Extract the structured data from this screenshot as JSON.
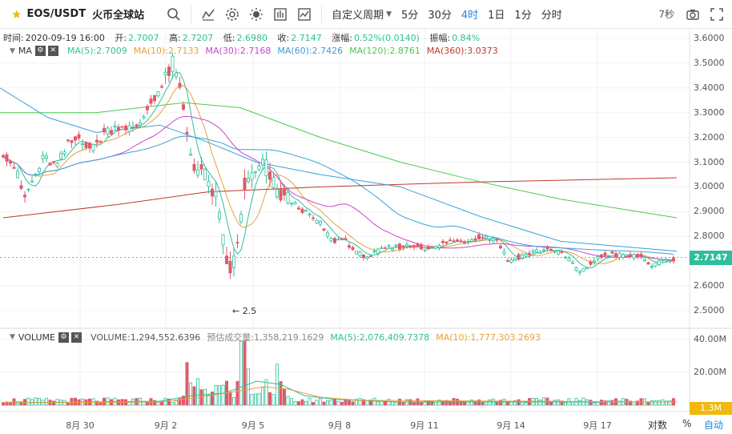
{
  "toolbar": {
    "pair": "EOS/USDT",
    "exchange": "火币全球站",
    "custom_period": "自定义周期",
    "periods": [
      "5分",
      "30分",
      "4时",
      "1日",
      "1分",
      "分时"
    ],
    "active_period": "4时",
    "seconds": "7秒",
    "icons": [
      "search-icon",
      "line-tool-icon",
      "gear-icon",
      "theme-icon",
      "compare-icon",
      "indicator-icon",
      "camera-icon",
      "fullscreen-icon"
    ]
  },
  "info": {
    "time_label": "时间:",
    "time": "2020-09-19 16:00",
    "open_label": "开:",
    "open": "2.7007",
    "high_label": "高:",
    "high": "2.7207",
    "low_label": "低:",
    "low": "2.6980",
    "close_label": "收:",
    "close": "2.7147",
    "change_label": "涨幅:",
    "change": "0.52%(0.0140)",
    "amplitude_label": "振幅:",
    "amplitude": "0.84%"
  },
  "ma_legend": {
    "name": "MA",
    "items": [
      {
        "label": "MA(5):2.7009",
        "color": "#2fbf9a"
      },
      {
        "label": "MA(10):2.7133",
        "color": "#e6a23c"
      },
      {
        "label": "MA(30):2.7168",
        "color": "#cc44cc"
      },
      {
        "label": "MA(60):2.7426",
        "color": "#3aa0d8"
      },
      {
        "label": "MA(120):2.8761",
        "color": "#4cc94c"
      },
      {
        "label": "MA(360):3.0373",
        "color": "#c0392b"
      }
    ]
  },
  "vol_legend": {
    "name": "VOLUME",
    "items": [
      {
        "label": "VOLUME:1,294,552.6396",
        "color": "#555555"
      },
      {
        "label": "预估成交量:1,358,219.1629",
        "color": "#888888"
      },
      {
        "label": "MA(5):2,076,409.7378",
        "color": "#2fbf9a"
      },
      {
        "label": "MA(10):1,777,303.2693",
        "color": "#e6a23c"
      }
    ]
  },
  "price_axis": [
    "3.6000",
    "3.5000",
    "3.4000",
    "3.3000",
    "3.2000",
    "3.1000",
    "3.0000",
    "2.9000",
    "2.8000",
    "2.7000",
    "2.6000",
    "2.5000"
  ],
  "price_axis_values": [
    3.6,
    3.5,
    3.4,
    3.3,
    3.2,
    3.1,
    3.0,
    2.9,
    2.8,
    2.7,
    2.6,
    2.5
  ],
  "current_price": "2.7147",
  "current_price_value": 2.7147,
  "min_marker": "← 2.5",
  "vol_axis": [
    "40.00M",
    "20.00M"
  ],
  "vol_axis_values": [
    40,
    20
  ],
  "current_vol": "1.3M",
  "date_labels": [
    "8月 30",
    "9月 2",
    "9月 5",
    "9月 8",
    "9月 11",
    "9月 14",
    "9月 17"
  ],
  "corner": {
    "log": "对数",
    "percent": "%",
    "auto": "自动"
  },
  "colors": {
    "up": "#2fbf9a",
    "down": "#e05a6a",
    "grid": "#f0f0f0",
    "border": "#e0e0e0"
  }
}
